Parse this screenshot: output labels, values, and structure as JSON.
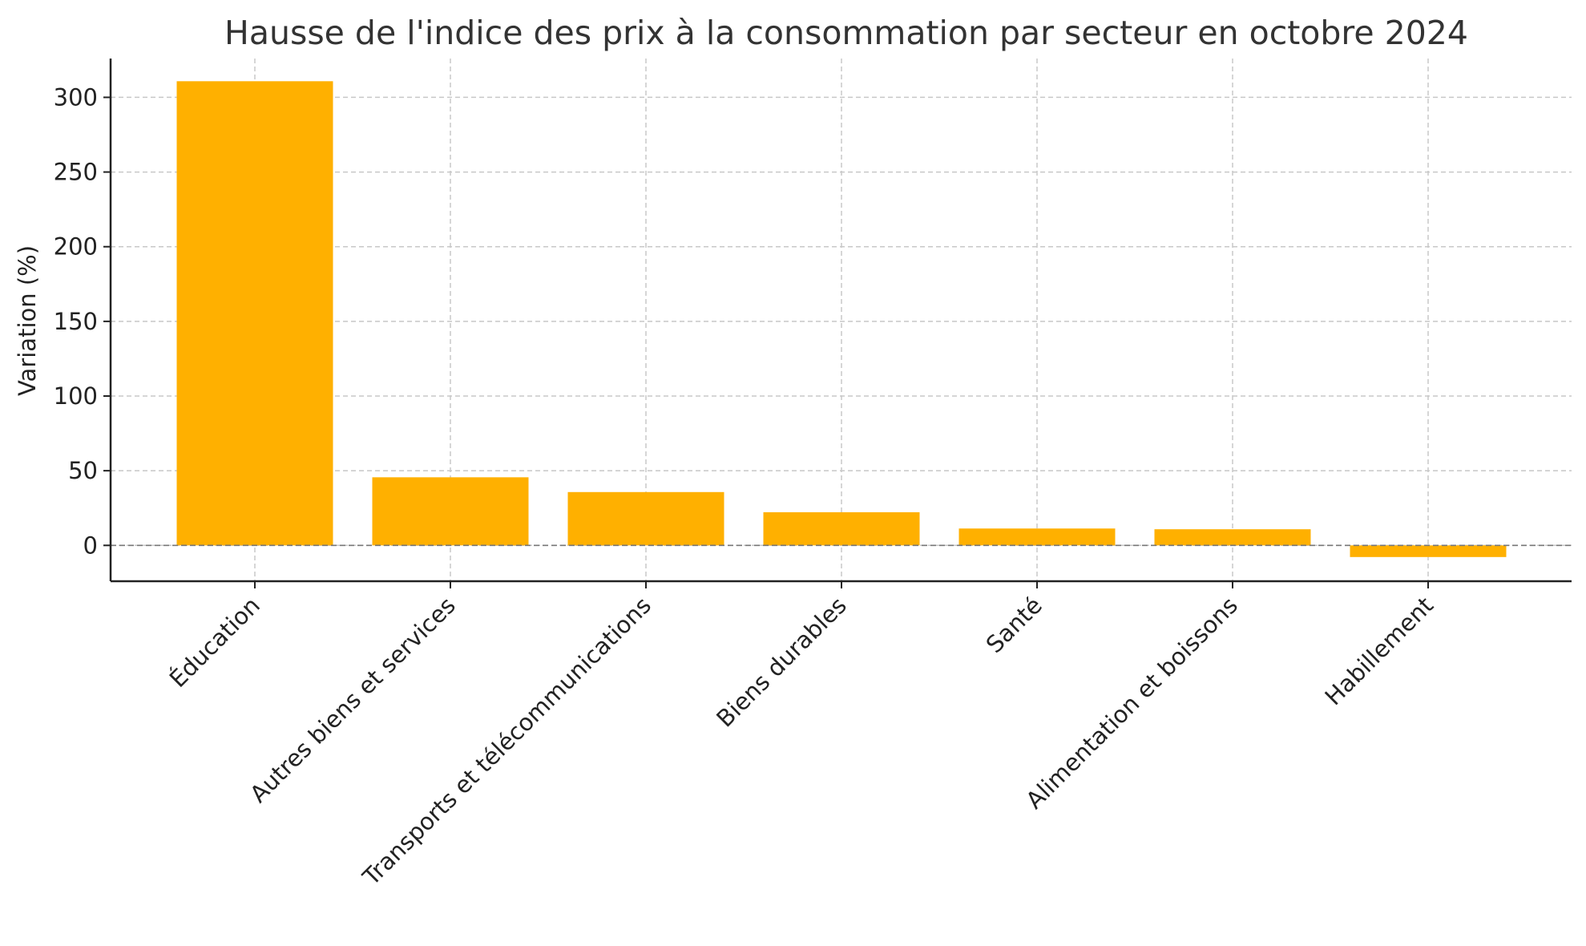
{
  "chart_data": {
    "type": "bar",
    "title": "Hausse de l'indice des prix à la consommation par secteur en octobre 2024",
    "xlabel": "",
    "ylabel": "Variation (%)",
    "categories": [
      "Éducation",
      "Autres biens et services",
      "Transports et télécommunications",
      "Biens durables",
      "Santé",
      "Alimentation et boissons",
      "Habillement"
    ],
    "values": [
      310.8,
      45.6,
      35.7,
      22.2,
      11.3,
      10.8,
      -7.8
    ],
    "ylim": [
      -24,
      326
    ],
    "yticks": [
      0,
      50,
      100,
      150,
      200,
      250,
      300
    ],
    "grid": true,
    "bar_color": "#ffb000",
    "zero_line": true
  }
}
